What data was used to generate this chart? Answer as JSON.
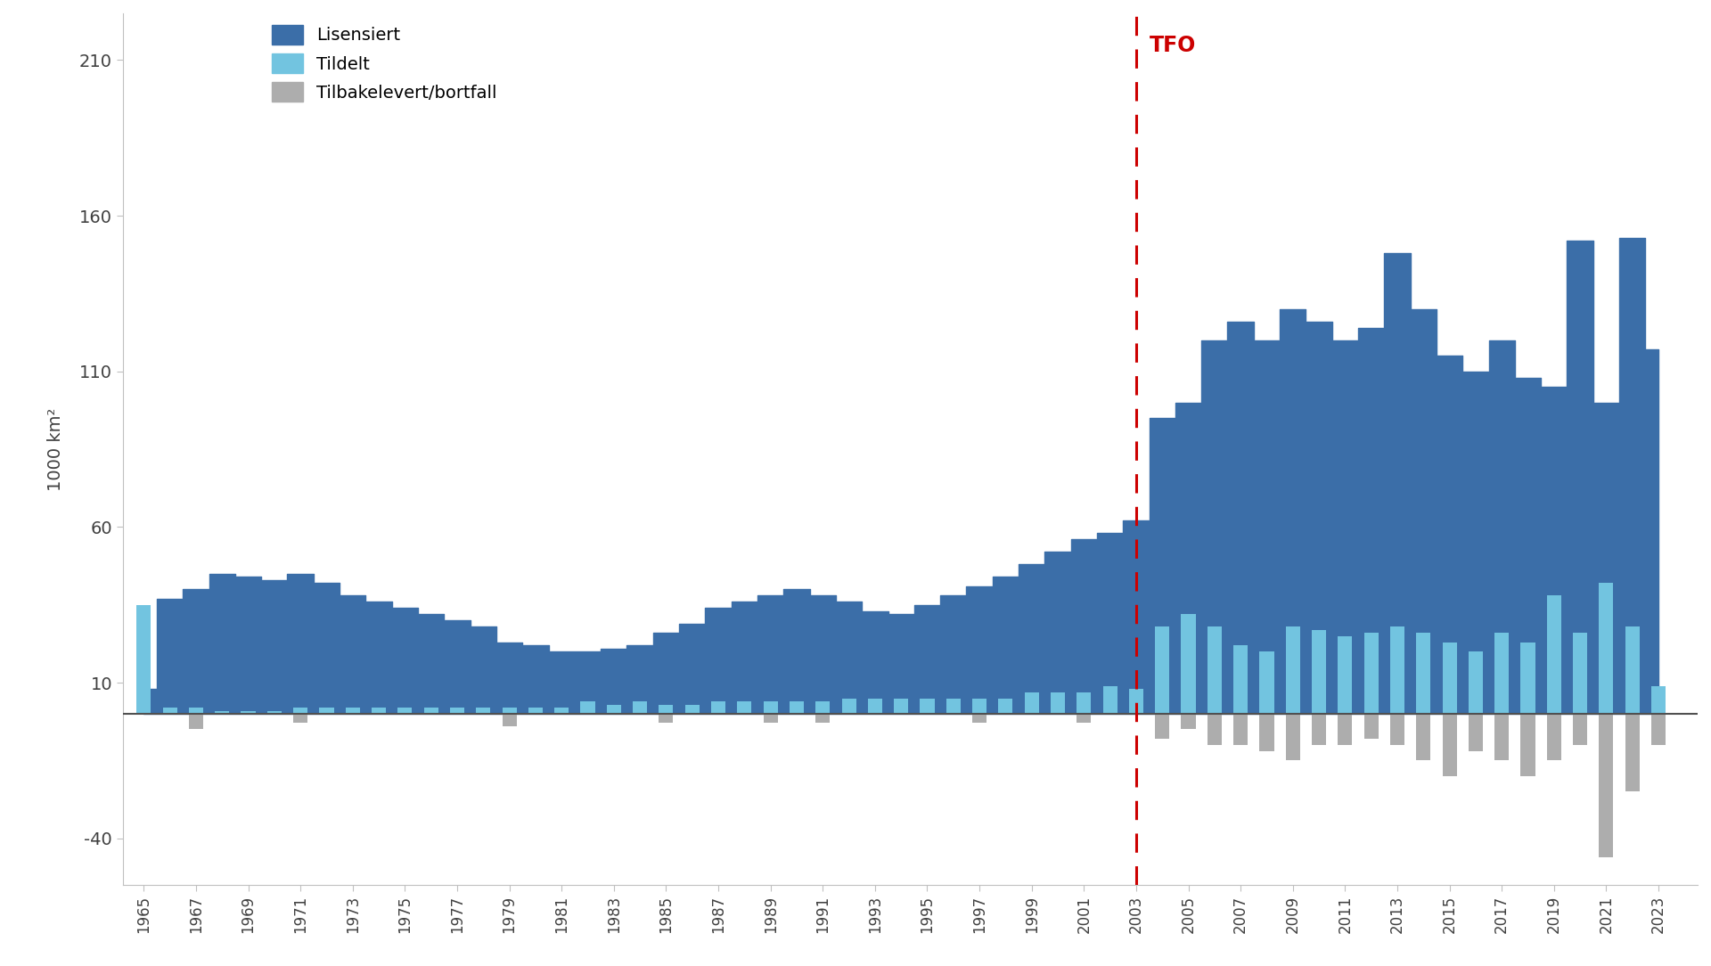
{
  "years": [
    1965,
    1966,
    1967,
    1968,
    1969,
    1970,
    1971,
    1972,
    1973,
    1974,
    1975,
    1976,
    1977,
    1978,
    1979,
    1980,
    1981,
    1982,
    1983,
    1984,
    1985,
    1986,
    1987,
    1988,
    1989,
    1990,
    1991,
    1992,
    1993,
    1994,
    1995,
    1996,
    1997,
    1998,
    1999,
    2000,
    2001,
    2002,
    2003,
    2004,
    2005,
    2006,
    2007,
    2008,
    2009,
    2010,
    2011,
    2012,
    2013,
    2014,
    2015,
    2016,
    2017,
    2018,
    2019,
    2020,
    2021,
    2022,
    2023
  ],
  "lisensiert": [
    8,
    37,
    40,
    45,
    44,
    43,
    45,
    42,
    38,
    36,
    34,
    32,
    30,
    28,
    23,
    22,
    20,
    20,
    21,
    22,
    26,
    29,
    34,
    36,
    38,
    40,
    38,
    36,
    33,
    32,
    35,
    38,
    41,
    44,
    48,
    52,
    56,
    58,
    62,
    95,
    100,
    120,
    126,
    120,
    130,
    126,
    120,
    124,
    148,
    130,
    115,
    110,
    120,
    108,
    105,
    152,
    100,
    153,
    117
  ],
  "tildelt": [
    35,
    2,
    2,
    1,
    1,
    1,
    2,
    2,
    2,
    2,
    2,
    2,
    2,
    2,
    2,
    2,
    2,
    4,
    3,
    4,
    3,
    3,
    4,
    4,
    4,
    4,
    4,
    5,
    5,
    5,
    5,
    5,
    5,
    5,
    7,
    7,
    7,
    9,
    8,
    28,
    32,
    28,
    22,
    20,
    28,
    27,
    25,
    26,
    28,
    26,
    23,
    20,
    26,
    23,
    38,
    26,
    42,
    28,
    9
  ],
  "tilbakelevert": [
    0,
    0,
    -5,
    0,
    0,
    0,
    -3,
    0,
    0,
    0,
    0,
    0,
    0,
    0,
    -4,
    0,
    0,
    0,
    0,
    0,
    -3,
    0,
    0,
    0,
    -3,
    0,
    -3,
    0,
    0,
    0,
    0,
    0,
    -3,
    0,
    0,
    0,
    -3,
    0,
    0,
    -8,
    -5,
    -10,
    -10,
    -12,
    -15,
    -10,
    -10,
    -8,
    -10,
    -15,
    -20,
    -12,
    -15,
    -20,
    -15,
    -10,
    -46,
    -25,
    -10
  ],
  "tfo_year": 2003,
  "lisensiert_color": "#3B6EA8",
  "tildelt_color": "#72C4E0",
  "tilbakelevert_color": "#ADADAD",
  "tfo_color": "#CC0000",
  "background_color": "#FFFFFF",
  "ylabel": "1000 km²",
  "ylim": [
    -55,
    225
  ],
  "ytick_positions": [
    -40,
    10,
    60,
    110,
    160,
    210
  ],
  "legend_labels": [
    "Lisensiert",
    "Tildelt",
    "Tilbakelevert/bortfall"
  ],
  "zero_line_color": "#505050"
}
